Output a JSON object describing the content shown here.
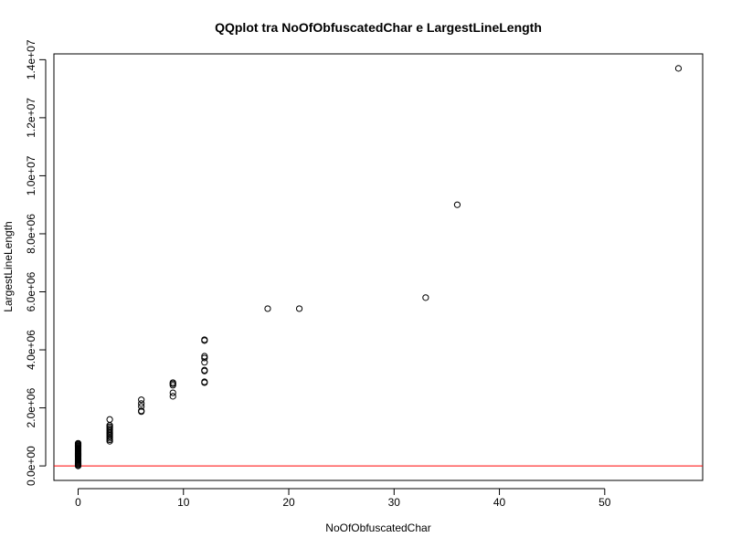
{
  "chart_data": {
    "type": "scatter",
    "title": "QQplot tra NoOfObfuscatedChar e LargestLineLength",
    "xlabel": "NoOfObfuscatedChar",
    "ylabel": "LargestLineLength",
    "xlim": [
      -2.3,
      59.3
    ],
    "ylim": [
      -500000,
      14200000
    ],
    "x_ticks": [
      0,
      10,
      20,
      30,
      40,
      50
    ],
    "x_tick_labels": [
      "0",
      "10",
      "20",
      "30",
      "40",
      "50"
    ],
    "y_ticks": [
      0,
      2000000,
      4000000,
      6000000,
      8000000,
      10000000,
      12000000,
      14000000
    ],
    "y_tick_labels": [
      "0.0e+00",
      "2.0e+06",
      "4.0e+06",
      "6.0e+06",
      "8.0e+06",
      "1.0e+07",
      "1.2e+07",
      "1.4e+07"
    ],
    "grid": false,
    "marker": "open-circle",
    "marker_color": "#000000",
    "reference_line": {
      "type": "horizontal",
      "y": 0,
      "color": "#ff0000"
    },
    "series": [
      {
        "values": [
          {
            "x": 0,
            "y": 0
          },
          {
            "x": 0,
            "y": 30000
          },
          {
            "x": 0,
            "y": 60000
          },
          {
            "x": 0,
            "y": 90000
          },
          {
            "x": 0,
            "y": 120000
          },
          {
            "x": 0,
            "y": 150000
          },
          {
            "x": 0,
            "y": 180000
          },
          {
            "x": 0,
            "y": 210000
          },
          {
            "x": 0,
            "y": 240000
          },
          {
            "x": 0,
            "y": 270000
          },
          {
            "x": 0,
            "y": 300000
          },
          {
            "x": 0,
            "y": 330000
          },
          {
            "x": 0,
            "y": 360000
          },
          {
            "x": 0,
            "y": 390000
          },
          {
            "x": 0,
            "y": 420000
          },
          {
            "x": 0,
            "y": 450000
          },
          {
            "x": 0,
            "y": 480000
          },
          {
            "x": 0,
            "y": 510000
          },
          {
            "x": 0,
            "y": 540000
          },
          {
            "x": 0,
            "y": 570000
          },
          {
            "x": 0,
            "y": 600000
          },
          {
            "x": 0,
            "y": 630000
          },
          {
            "x": 0,
            "y": 660000
          },
          {
            "x": 0,
            "y": 690000
          },
          {
            "x": 0,
            "y": 720000
          },
          {
            "x": 0,
            "y": 750000
          },
          {
            "x": 0,
            "y": 780000
          },
          {
            "x": 3,
            "y": 850000
          },
          {
            "x": 3,
            "y": 900000
          },
          {
            "x": 3,
            "y": 950000
          },
          {
            "x": 3,
            "y": 1000000
          },
          {
            "x": 3,
            "y": 1050000
          },
          {
            "x": 3,
            "y": 1100000
          },
          {
            "x": 3,
            "y": 1150000
          },
          {
            "x": 3,
            "y": 1200000
          },
          {
            "x": 3,
            "y": 1250000
          },
          {
            "x": 3,
            "y": 1300000
          },
          {
            "x": 3,
            "y": 1350000
          },
          {
            "x": 3,
            "y": 1400000
          },
          {
            "x": 3,
            "y": 1600000
          },
          {
            "x": 6,
            "y": 1870000
          },
          {
            "x": 6,
            "y": 1900000
          },
          {
            "x": 6,
            "y": 2050000
          },
          {
            "x": 6,
            "y": 2150000
          },
          {
            "x": 6,
            "y": 2280000
          },
          {
            "x": 9,
            "y": 2400000
          },
          {
            "x": 9,
            "y": 2520000
          },
          {
            "x": 9,
            "y": 2780000
          },
          {
            "x": 9,
            "y": 2830000
          },
          {
            "x": 9,
            "y": 2870000
          },
          {
            "x": 12,
            "y": 2870000
          },
          {
            "x": 12,
            "y": 2900000
          },
          {
            "x": 12,
            "y": 3270000
          },
          {
            "x": 12,
            "y": 3300000
          },
          {
            "x": 12,
            "y": 3570000
          },
          {
            "x": 12,
            "y": 3720000
          },
          {
            "x": 12,
            "y": 3780000
          },
          {
            "x": 12,
            "y": 4320000
          },
          {
            "x": 12,
            "y": 4350000
          },
          {
            "x": 18,
            "y": 5420000
          },
          {
            "x": 21,
            "y": 5420000
          },
          {
            "x": 33,
            "y": 5800000
          },
          {
            "x": 36,
            "y": 9000000
          },
          {
            "x": 57,
            "y": 13700000
          }
        ]
      }
    ]
  }
}
